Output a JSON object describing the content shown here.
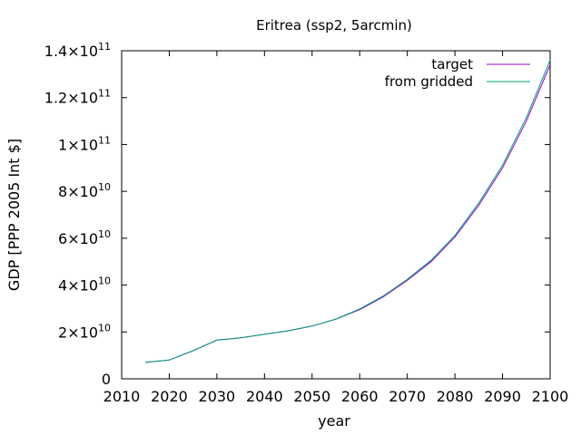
{
  "chart_data": {
    "type": "line",
    "title": "Eritrea (ssp2, 5arcmin)",
    "xlabel": "year",
    "ylabel": "GDP [PPP 2005 Int $]",
    "xlim": [
      2010,
      2100
    ],
    "ylim": [
      0,
      140000000000
    ],
    "x_ticks": [
      2010,
      2020,
      2030,
      2040,
      2050,
      2060,
      2070,
      2080,
      2090,
      2100
    ],
    "y_ticks": [
      {
        "value": 0,
        "mantissa": "0",
        "exponent": ""
      },
      {
        "value": 20000000000,
        "mantissa": "2×10",
        "exponent": "10"
      },
      {
        "value": 40000000000,
        "mantissa": "4×10",
        "exponent": "10"
      },
      {
        "value": 60000000000,
        "mantissa": "6×10",
        "exponent": "10"
      },
      {
        "value": 80000000000,
        "mantissa": "8×10",
        "exponent": "10"
      },
      {
        "value": 100000000000,
        "mantissa": "1×10",
        "exponent": "11"
      },
      {
        "value": 120000000000,
        "mantissa": "1.2×10",
        "exponent": "11"
      },
      {
        "value": 140000000000,
        "mantissa": "1.4×10",
        "exponent": "11"
      }
    ],
    "grid": false,
    "legend_position": "top-right",
    "x": [
      2015,
      2020,
      2025,
      2030,
      2035,
      2040,
      2045,
      2050,
      2055,
      2060,
      2065,
      2070,
      2075,
      2080,
      2085,
      2090,
      2095,
      2100
    ],
    "series": [
      {
        "name": "target",
        "color": "#9400d3",
        "values": [
          7000000000,
          8000000000,
          12000000000,
          16500000000,
          17500000000,
          19000000000,
          20500000000,
          22500000000,
          25500000000,
          29500000000,
          35000000000,
          42000000000,
          50000000000,
          60500000000,
          74000000000,
          90000000000,
          110000000000,
          134000000000
        ]
      },
      {
        "name": "from gridded",
        "color": "#009e73",
        "values": [
          7000000000,
          8000000000,
          12000000000,
          16500000000,
          17500000000,
          19000000000,
          20500000000,
          22500000000,
          25500000000,
          29800000000,
          35400000000,
          42500000000,
          50600000000,
          61200000000,
          75000000000,
          91200000000,
          111500000000,
          136000000000
        ]
      }
    ]
  }
}
